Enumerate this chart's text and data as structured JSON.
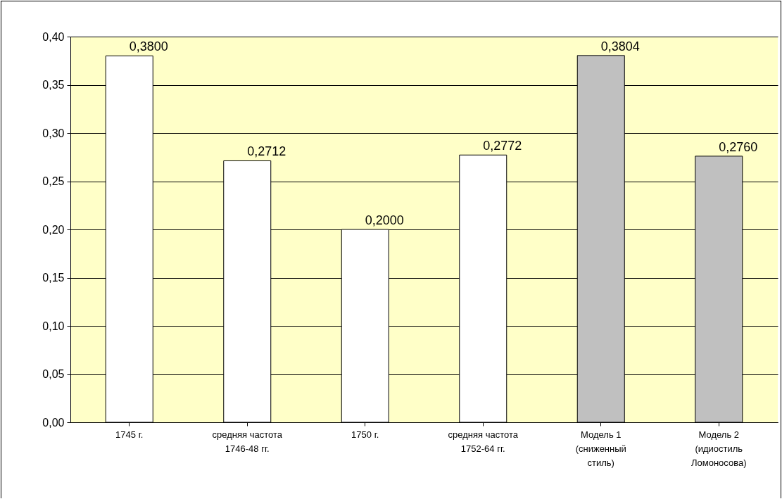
{
  "chart_data": {
    "type": "bar",
    "categories": [
      "1745 г.",
      "средняя частота 1746-48 гг.",
      "1750 г.",
      "средняя частота 1752-64 гг.",
      "Модель 1 (сниженный стиль)",
      "Модель 2 (идиостиль Ломоносова)"
    ],
    "values": [
      0.38,
      0.2712,
      0.2,
      0.2772,
      0.3804,
      0.276
    ],
    "colors": [
      "#ffffff",
      "#ffffff",
      "#ffffff",
      "#ffffff",
      "#c0c0c0",
      "#c0c0c0"
    ],
    "value_labels": [
      "0,3800",
      "0,2712",
      "0,2000",
      "0,2772",
      "0,3804",
      "0,2760"
    ],
    "ylim": [
      0,
      0.4
    ],
    "yticks": [
      {
        "value": 0,
        "label": "0,00"
      },
      {
        "value": 0.05,
        "label": "0,05"
      },
      {
        "value": 0.1,
        "label": "0,10"
      },
      {
        "value": 0.15,
        "label": "0,15"
      },
      {
        "value": 0.2,
        "label": "0,20"
      },
      {
        "value": 0.25,
        "label": "0,25"
      },
      {
        "value": 0.3,
        "label": "0,30"
      },
      {
        "value": 0.35,
        "label": "0,35"
      },
      {
        "value": 0.4,
        "label": "0,40"
      }
    ],
    "grid": "y"
  }
}
